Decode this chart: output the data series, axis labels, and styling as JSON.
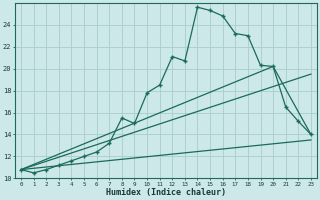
{
  "xlabel": "Humidex (Indice chaleur)",
  "bg_color": "#cce8e8",
  "grid_color": "#aacccc",
  "line_color": "#1a6b5a",
  "xlim": [
    -0.5,
    23.5
  ],
  "ylim": [
    10,
    26
  ],
  "xtick_labels": [
    "0",
    "1",
    "2",
    "3",
    "4",
    "5",
    "6",
    "7",
    "8",
    "9",
    "10",
    "11",
    "12",
    "13",
    "14",
    "15",
    "16",
    "17",
    "18",
    "19",
    "20",
    "21",
    "22",
    "23"
  ],
  "ytick_values": [
    10,
    12,
    14,
    16,
    18,
    20,
    22,
    24
  ],
  "series1_x": [
    0,
    1,
    2,
    3,
    4,
    5,
    6,
    7,
    8,
    9,
    10,
    11,
    12,
    13,
    14,
    15,
    16,
    17,
    18,
    19,
    20,
    21,
    22,
    23
  ],
  "series1_y": [
    10.8,
    10.5,
    10.8,
    11.2,
    11.6,
    12.0,
    12.4,
    13.2,
    15.5,
    15.0,
    17.8,
    18.5,
    21.1,
    20.7,
    25.6,
    25.3,
    24.8,
    23.2,
    23.0,
    20.3,
    20.2,
    16.5,
    15.2,
    14.0
  ],
  "series2_x": [
    0,
    20,
    23
  ],
  "series2_y": [
    10.8,
    20.2,
    14.0
  ],
  "series3_x": [
    0,
    23
  ],
  "series3_y": [
    10.8,
    19.5
  ],
  "series4_x": [
    0,
    23
  ],
  "series4_y": [
    10.8,
    13.5
  ]
}
